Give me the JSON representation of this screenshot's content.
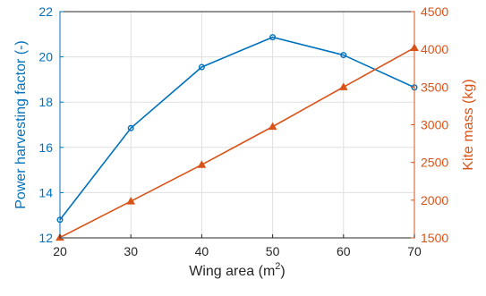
{
  "chart_data": {
    "type": "line",
    "xlabel": "Wing area (m",
    "xlabel_superscript": "2",
    "xlabel_suffix": ")",
    "x": [
      20,
      30,
      40,
      50,
      60,
      70
    ],
    "xlim": [
      20,
      70
    ],
    "xticks": [
      20,
      30,
      40,
      50,
      60,
      70
    ],
    "y_left": {
      "label": "Power harvesting factor (-)",
      "lim": [
        12,
        22
      ],
      "ticks": [
        12,
        14,
        16,
        18,
        20,
        22
      ],
      "color": "#0072BD"
    },
    "y_right": {
      "label": "Kite mass (kg)",
      "lim": [
        1500,
        4500
      ],
      "ticks": [
        1500,
        2000,
        2500,
        3000,
        3500,
        4000,
        4500
      ],
      "color": "#D95319"
    },
    "series": [
      {
        "axis": "left",
        "marker": "circle",
        "color": "#0072BD",
        "x": [
          20,
          30,
          40,
          50,
          60,
          70
        ],
        "values": [
          12.8,
          16.85,
          19.55,
          20.87,
          20.08,
          18.65
        ]
      },
      {
        "axis": "right",
        "marker": "triangle",
        "color": "#D95319",
        "x": [
          20,
          30,
          40,
          50,
          60,
          70
        ],
        "values": [
          1505,
          1985,
          2470,
          2975,
          3500,
          4020
        ]
      }
    ],
    "grid": true
  }
}
